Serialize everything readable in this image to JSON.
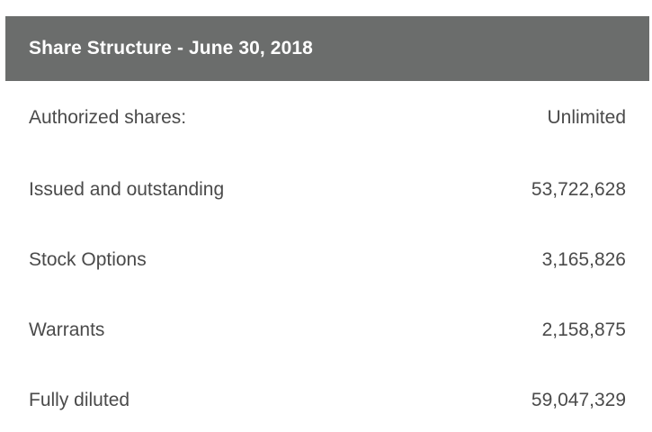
{
  "table": {
    "title": "Share Structure - June 30, 2018",
    "rows": [
      {
        "label": "Authorized shares:",
        "value": "Unlimited"
      },
      {
        "label": "Issued and outstanding",
        "value": "53,722,628"
      },
      {
        "label": "Stock Options",
        "value": "3,165,826"
      },
      {
        "label": "Warrants",
        "value": "2,158,875"
      },
      {
        "label": "Fully diluted",
        "value": "59,047,329"
      }
    ]
  }
}
